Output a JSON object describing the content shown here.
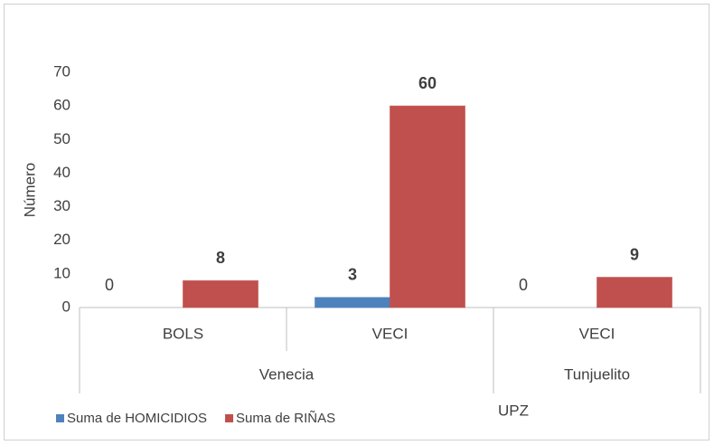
{
  "chart_data": {
    "type": "bar",
    "groups": [
      {
        "name": "Venecia",
        "categories": [
          "BOLS",
          "VECI"
        ]
      },
      {
        "name": "Tunjuelito",
        "categories": [
          "VECI"
        ]
      }
    ],
    "series": [
      {
        "name": "Suma de HOMICIDIOS",
        "color": "#4f81bd",
        "values": [
          0,
          3,
          0
        ]
      },
      {
        "name": "Suma de RIÑAS",
        "color": "#c0504d",
        "values": [
          8,
          60,
          9
        ]
      }
    ],
    "ylabel": "Número",
    "xlabel": "UPZ",
    "ylim": [
      0,
      70
    ],
    "yticks": [
      0,
      10,
      20,
      30,
      40,
      50,
      60,
      70
    ],
    "grid": false,
    "legend": "bottom-left"
  }
}
